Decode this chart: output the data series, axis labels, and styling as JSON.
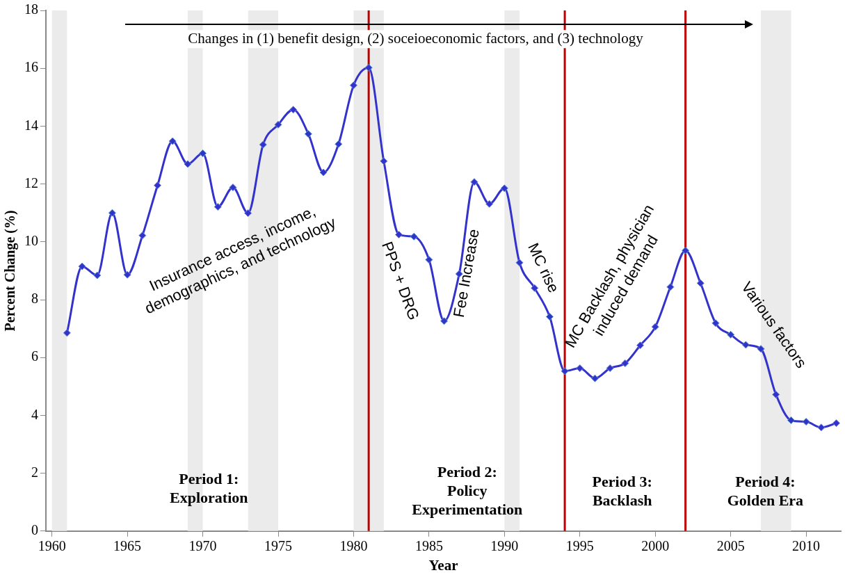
{
  "chart_data": {
    "type": "line",
    "xlabel": "Year",
    "ylabel": "Percent Change (%)",
    "x": [
      1961,
      1962,
      1963,
      1964,
      1965,
      1966,
      1967,
      1968,
      1969,
      1970,
      1971,
      1972,
      1973,
      1974,
      1975,
      1976,
      1977,
      1978,
      1979,
      1980,
      1981,
      1982,
      1983,
      1984,
      1985,
      1986,
      1987,
      1988,
      1989,
      1990,
      1991,
      1992,
      1993,
      1994,
      1995,
      1996,
      1997,
      1998,
      1999,
      2000,
      2001,
      2002,
      2003,
      2004,
      2005,
      2006,
      2007,
      2008,
      2009,
      2010,
      2011,
      2012
    ],
    "series": [
      {
        "color": "#3333cc",
        "values": [
          6.85,
          9.15,
          8.84,
          11.0,
          8.86,
          10.22,
          11.95,
          13.48,
          12.69,
          13.06,
          11.21,
          11.88,
          10.99,
          13.36,
          14.05,
          14.57,
          13.73,
          12.4,
          13.38,
          15.41,
          16.02,
          12.79,
          10.25,
          10.18,
          9.38,
          7.26,
          8.89,
          12.07,
          11.31,
          11.85,
          9.28,
          8.4,
          7.41,
          5.53,
          5.63,
          5.28,
          5.63,
          5.8,
          6.42,
          7.06,
          8.44,
          9.7,
          8.57,
          7.19,
          6.79,
          6.44,
          6.3,
          4.72,
          3.83,
          3.78,
          3.58,
          3.73
        ]
      }
    ],
    "xlim": [
      1959.6,
      2012.3
    ],
    "xticks": [
      1960,
      1965,
      1970,
      1975,
      1980,
      1985,
      1990,
      1995,
      2000,
      2005,
      2010
    ],
    "ylim": [
      0,
      18
    ],
    "yticks": [
      0,
      2,
      4,
      6,
      8,
      10,
      12,
      14,
      16,
      18
    ],
    "grid": false,
    "legend": false,
    "marker": "diamond",
    "line_style": "solid",
    "bands": [
      {
        "axis": "x",
        "from": 1960,
        "to": 1961,
        "color": "#ebebeb"
      },
      {
        "axis": "x",
        "from": 1969,
        "to": 1970,
        "color": "#ebebeb"
      },
      {
        "axis": "x",
        "from": 1973,
        "to": 1975,
        "color": "#ebebeb"
      },
      {
        "axis": "x",
        "from": 1980,
        "to": 1982,
        "color": "#ebebeb"
      },
      {
        "axis": "x",
        "from": 1990,
        "to": 1991,
        "color": "#ebebeb"
      },
      {
        "axis": "x",
        "from": 2007,
        "to": 2009,
        "color": "#ebebeb"
      }
    ],
    "ref_lines": [
      {
        "axis": "x",
        "value": 1981,
        "color": "#c00000"
      },
      {
        "axis": "x",
        "value": 1994,
        "color": "#c00000"
      },
      {
        "axis": "x",
        "value": 2002,
        "color": "#c00000"
      }
    ],
    "annotations": [
      "Changes in (1) benefit design, (2) soceioeconomic factors, and (3) technology",
      "Insurance access, income,\ndemographics, and technology",
      "PPS + DRG",
      "Fee Increase",
      "MC rise",
      "MC Backlash, physician\ninduced demand",
      "Various factors",
      "Period 1:\nExploration",
      "Period 2:\nPolicy\nExperimentation",
      "Period 3:\nBacklash",
      "Period 4:\nGolden Era"
    ]
  }
}
